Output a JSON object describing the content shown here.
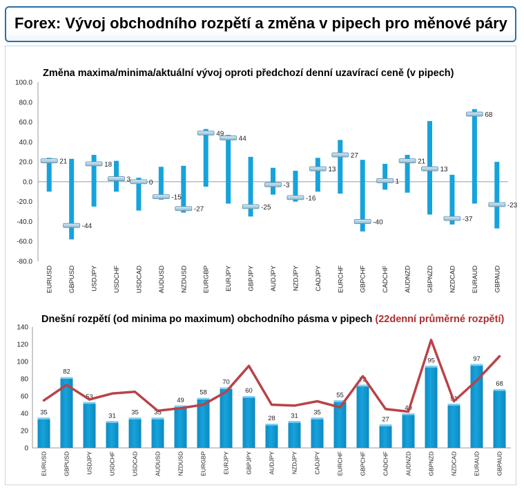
{
  "page": {
    "title": "Forex: Vývoj obchodního rozpětí a změna v pipech pro měnové páry"
  },
  "chart_data": [
    {
      "type": "range",
      "title": "Změna maxima/minima/aktuální vývoj oproti předchozí denní uzavírací ceně (v pipech)",
      "categories": [
        "EURUSD",
        "GBPUSD",
        "USDJPY",
        "USDCHF",
        "USDCAD",
        "AUDUSD",
        "NZDUSD",
        "EURGBP",
        "EURJPY",
        "GBPJPY",
        "AUDJPY",
        "NZDJPY",
        "CADJPY",
        "EURCHF",
        "GBPCHF",
        "CADCHF",
        "AUDNZD",
        "GBPNZD",
        "NZDCAD",
        "EURAUD",
        "GBPAUD"
      ],
      "high": [
        24,
        23,
        27,
        21,
        4,
        15,
        16,
        53,
        47,
        25,
        14,
        11,
        24,
        42,
        22,
        18,
        27,
        61,
        7,
        73,
        20
      ],
      "low": [
        -10,
        -58,
        -25,
        -10,
        -29,
        -18,
        -31,
        -5,
        -22,
        -35,
        -13,
        -20,
        -10,
        -12,
        -50,
        -8,
        -11,
        -33,
        -43,
        -22,
        -47
      ],
      "current": [
        21,
        -44,
        18,
        3,
        0,
        -15,
        -27,
        49,
        44,
        -25,
        -3,
        -16,
        13,
        27,
        -40,
        1,
        21,
        13,
        -37,
        68,
        -23
      ],
      "ylim": [
        -80,
        100
      ],
      "yticks": [
        "100.0",
        "80.0",
        "60.0",
        "40.0",
        "20.0",
        "0.0",
        "-20.0",
        "-40.0",
        "-60.0",
        "-80.0"
      ],
      "colors": {
        "bar": "#16a3dc",
        "marker": "#8fb7cf"
      }
    },
    {
      "type": "bar+line",
      "title": "Dnešní rozpětí (od minima po maximum) obchodního pásma v pipech",
      "title_highlight": "(22denní průměrné rozpětí)",
      "categories": [
        "EURUSD",
        "GBPUSD",
        "USDJPY",
        "USDCHF",
        "USDCAD",
        "AUDUSD",
        "NZDUSD",
        "EURGBP",
        "EURJPY",
        "GBPJPY",
        "AUDJPY",
        "NZDJPY",
        "CADJPY",
        "EURCHF",
        "GBPCHF",
        "CADCHF",
        "AUDNZD",
        "GBPNZD",
        "NZDCAD",
        "EURAUD",
        "GBPAUD"
      ],
      "values": [
        35,
        82,
        53,
        31,
        35,
        35,
        49,
        58,
        70,
        60,
        28,
        31,
        35,
        55,
        73,
        27,
        40,
        95,
        51,
        97,
        68
      ],
      "average": [
        55,
        73,
        56,
        63,
        65,
        43,
        46,
        50,
        65,
        95,
        50,
        49,
        54,
        47,
        83,
        45,
        42,
        125,
        54,
        78,
        106
      ],
      "ylim": [
        0,
        140
      ],
      "yticks": [
        "140",
        "120",
        "100",
        "80",
        "60",
        "40",
        "20",
        "0"
      ],
      "colors": {
        "bar": "#16a3dc",
        "line": "#b84347"
      }
    }
  ]
}
